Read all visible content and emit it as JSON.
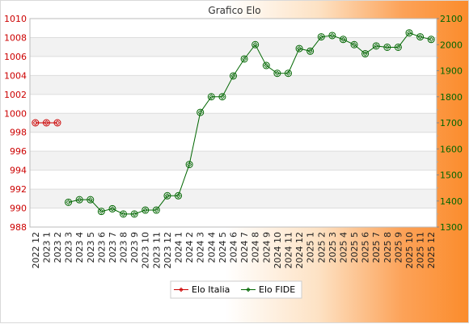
{
  "chart_data": {
    "type": "line",
    "title": "Grafico Elo",
    "categories": [
      "2022 12",
      "2023 1",
      "2023 2",
      "2023 3",
      "2023 4",
      "2023 5",
      "2023 6",
      "2023 7",
      "2023 8",
      "2023 9",
      "2023 10",
      "2023 11",
      "2023 12",
      "2024 1",
      "2024 2",
      "2024 3",
      "2024 4",
      "2024 5",
      "2024 6",
      "2024 7",
      "2024 8",
      "2024 9",
      "2024 10",
      "2024 11",
      "2024 12",
      "2025 1",
      "2025 2",
      "2025 3",
      "2025 4",
      "2025 5",
      "2025 6",
      "2025 7",
      "2025 8",
      "2025 9",
      "2025 10",
      "2025 11",
      "2025 12"
    ],
    "y_left": {
      "min": 988,
      "max": 1010,
      "step": 2,
      "ticks": [
        "988",
        "990",
        "992",
        "994",
        "996",
        "998",
        "1000",
        "1002",
        "1004",
        "1006",
        "1008",
        "1010"
      ]
    },
    "y_right": {
      "min": 1300,
      "max": 2100,
      "step": 100,
      "ticks": [
        "1300",
        "1400",
        "1500",
        "1600",
        "1700",
        "1800",
        "1900",
        "2000",
        "2100"
      ]
    },
    "series": [
      {
        "name": "Elo Italia",
        "axis": "left",
        "color": "#cc0000",
        "values": [
          999,
          999,
          999,
          null,
          null,
          null,
          null,
          null,
          null,
          null,
          null,
          null,
          null,
          null,
          null,
          null,
          null,
          null,
          null,
          null,
          null,
          null,
          null,
          null,
          null,
          null,
          null,
          null,
          null,
          null,
          null,
          null,
          null,
          null,
          null,
          null,
          null
        ]
      },
      {
        "name": "Elo FIDE",
        "axis": "right",
        "color": "#006600",
        "values": [
          null,
          null,
          null,
          1395,
          1405,
          1405,
          1360,
          1370,
          1350,
          1350,
          1365,
          1365,
          1420,
          1420,
          1540,
          1740,
          1800,
          1800,
          1880,
          1945,
          2000,
          1920,
          1890,
          1890,
          1985,
          1975,
          2030,
          2035,
          2020,
          2000,
          1965,
          1995,
          1990,
          1990,
          2045,
          2030,
          2020
        ]
      }
    ],
    "grid": true,
    "legend": "bottom"
  }
}
